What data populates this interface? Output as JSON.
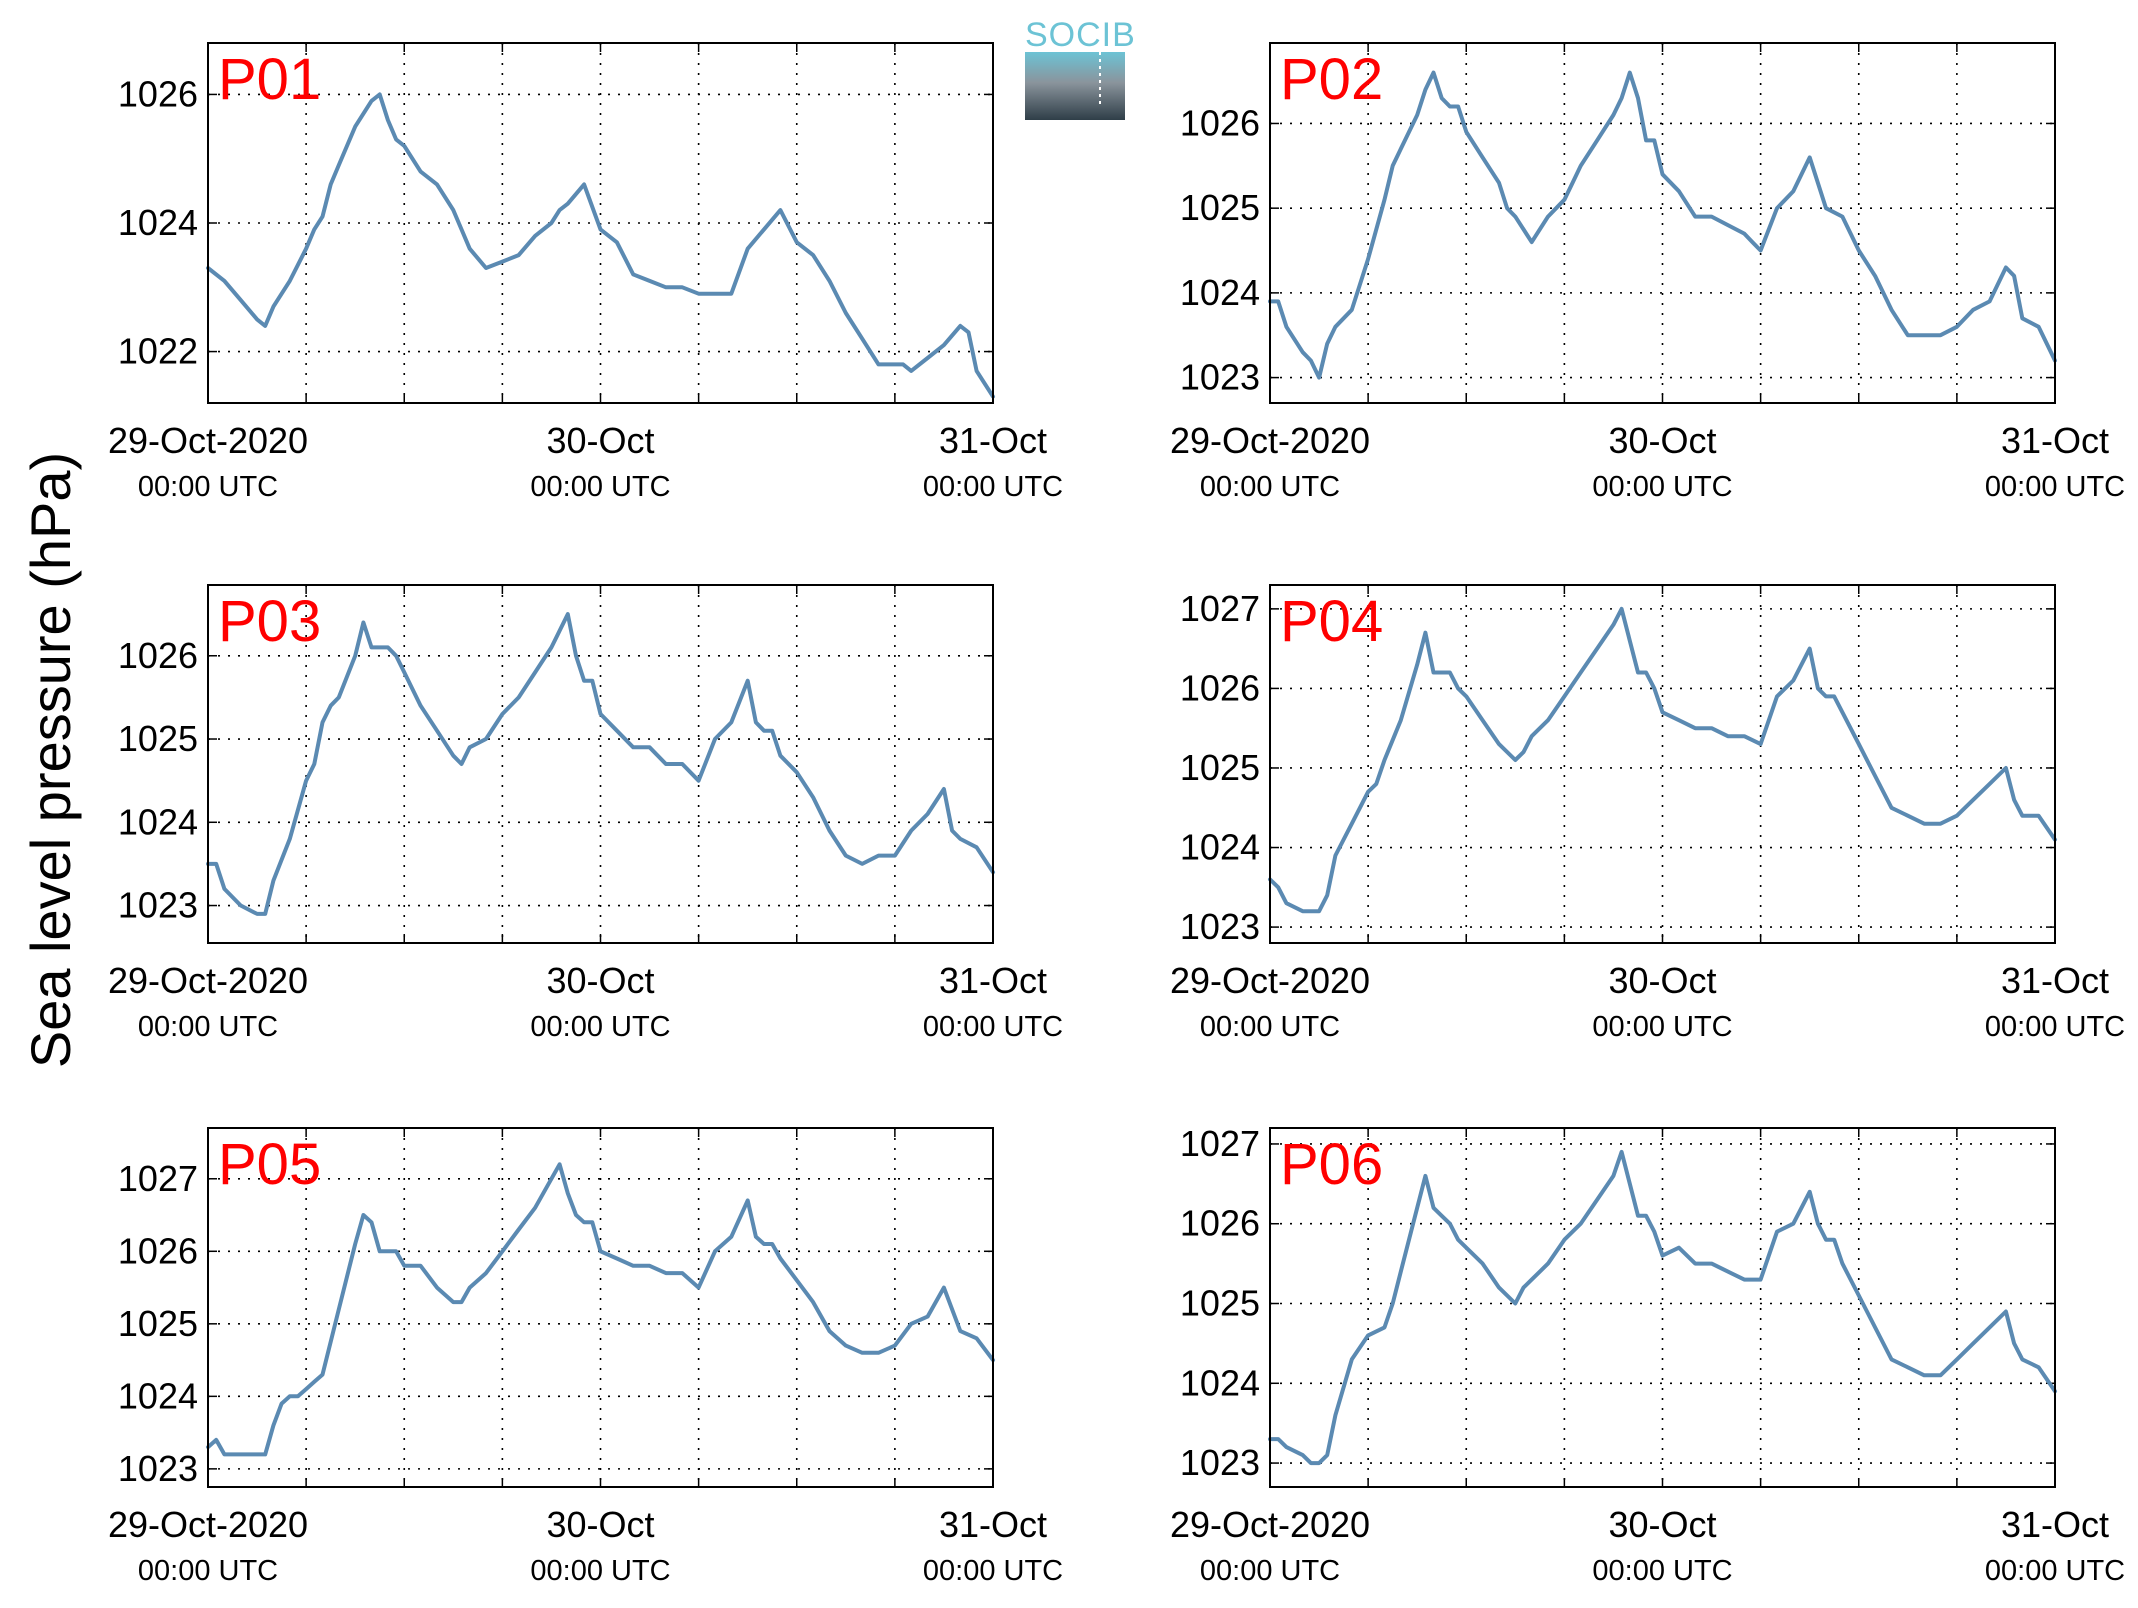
{
  "figure": {
    "ylabel": "Sea level pressure (hPa)",
    "logo_text": "SOCIB",
    "colors": {
      "line": "#5b8ab2",
      "panel_label": "#ff0000",
      "logo_top": "#6cc3d5",
      "logo_bottom": "#2f3e48"
    }
  },
  "chart_data": [
    {
      "type": "line",
      "title": "P01",
      "x_unit": "hours since 29-Oct-2020 00:00 UTC",
      "xlim": [
        0,
        48
      ],
      "ylim": [
        1021.2,
        1026.8
      ],
      "yticks": [
        1022,
        1024,
        1026
      ],
      "xticks": [
        0,
        24,
        48
      ],
      "xtick_labels": [
        [
          "29-Oct-2020",
          "00:00 UTC"
        ],
        [
          "30-Oct",
          "00:00 UTC"
        ],
        [
          "31-Oct",
          "00:00 UTC"
        ]
      ],
      "minor_grid_x": [
        6,
        12,
        18,
        30,
        36,
        42
      ],
      "grid": "dotted",
      "series": [
        {
          "x": [
            0,
            1,
            2,
            3,
            3.5,
            4,
            5,
            6,
            6.5,
            7,
            7.5,
            8,
            9,
            10,
            10.5,
            11,
            11.5,
            12,
            13,
            14,
            15,
            15.5,
            16,
            17,
            18,
            19,
            20,
            21,
            21.5,
            22,
            23,
            24,
            25,
            26,
            27,
            28,
            29,
            30,
            31,
            31.5,
            32,
            33,
            34,
            35,
            36,
            37,
            38,
            39,
            40,
            41,
            41.5,
            42,
            42.5,
            43,
            44,
            45,
            46,
            46.5,
            47,
            48
          ],
          "values": [
            1023.3,
            1023.1,
            1022.8,
            1022.5,
            1022.4,
            1022.7,
            1023.1,
            1023.6,
            1023.9,
            1024.1,
            1024.6,
            1024.9,
            1025.5,
            1025.9,
            1026.0,
            1025.6,
            1025.3,
            1025.2,
            1024.8,
            1024.6,
            1024.2,
            1023.9,
            1023.6,
            1023.3,
            1023.4,
            1023.5,
            1023.8,
            1024.0,
            1024.2,
            1024.3,
            1024.6,
            1023.9,
            1023.7,
            1023.2,
            1023.1,
            1023.0,
            1023.0,
            1022.9,
            1022.9,
            1022.9,
            1022.9,
            1023.6,
            1023.9,
            1024.2,
            1023.7,
            1023.5,
            1023.1,
            1022.6,
            1022.2,
            1021.8,
            1021.8,
            1021.8,
            1021.8,
            1021.7,
            1021.9,
            1022.1,
            1022.4,
            1022.3,
            1021.7,
            1021.3
          ]
        }
      ]
    },
    {
      "type": "line",
      "title": "P02",
      "x_unit": "hours since 29-Oct-2020 00:00 UTC",
      "xlim": [
        0,
        48
      ],
      "ylim": [
        1022.7,
        1026.95
      ],
      "yticks": [
        1023,
        1024,
        1025,
        1026
      ],
      "xticks": [
        0,
        24,
        48
      ],
      "xtick_labels": [
        [
          "29-Oct-2020",
          "00:00 UTC"
        ],
        [
          "30-Oct",
          "00:00 UTC"
        ],
        [
          "31-Oct",
          "00:00 UTC"
        ]
      ],
      "minor_grid_x": [
        6,
        12,
        18,
        30,
        36,
        42
      ],
      "grid": "dotted",
      "series": [
        {
          "x": [
            0,
            0.5,
            1,
            2,
            2.5,
            3,
            3.5,
            4,
            5,
            6,
            7,
            7.5,
            8,
            9,
            9.5,
            10,
            10.5,
            11,
            11.5,
            12,
            13,
            14,
            14.5,
            15,
            16,
            17,
            18,
            18.5,
            19,
            20,
            21,
            21.5,
            22,
            22.5,
            23,
            23.5,
            24,
            25,
            26,
            27,
            28,
            29,
            29.5,
            30,
            31,
            32,
            33,
            34,
            35,
            36,
            37,
            38,
            39,
            40,
            41,
            42,
            43,
            44,
            45,
            45.5,
            46,
            47,
            48
          ],
          "values": [
            1023.9,
            1023.9,
            1023.6,
            1023.3,
            1023.2,
            1023.0,
            1023.4,
            1023.6,
            1023.8,
            1024.4,
            1025.1,
            1025.5,
            1025.7,
            1026.1,
            1026.4,
            1026.6,
            1026.3,
            1026.2,
            1026.2,
            1025.9,
            1025.6,
            1025.3,
            1025.0,
            1024.9,
            1024.6,
            1024.9,
            1025.1,
            1025.3,
            1025.5,
            1025.8,
            1026.1,
            1026.3,
            1026.6,
            1026.3,
            1025.8,
            1025.8,
            1025.4,
            1025.2,
            1024.9,
            1024.9,
            1024.8,
            1024.7,
            1024.6,
            1024.5,
            1025.0,
            1025.2,
            1025.6,
            1025.0,
            1024.9,
            1024.5,
            1024.2,
            1023.8,
            1023.5,
            1023.5,
            1023.5,
            1023.6,
            1023.8,
            1023.9,
            1024.3,
            1024.2,
            1023.7,
            1023.6,
            1023.2
          ]
        }
      ]
    },
    {
      "type": "line",
      "title": "P03",
      "x_unit": "hours since 29-Oct-2020 00:00 UTC",
      "xlim": [
        0,
        48
      ],
      "ylim": [
        1022.55,
        1026.85
      ],
      "yticks": [
        1023,
        1024,
        1025,
        1026
      ],
      "xticks": [
        0,
        24,
        48
      ],
      "xtick_labels": [
        [
          "29-Oct-2020",
          "00:00 UTC"
        ],
        [
          "30-Oct",
          "00:00 UTC"
        ],
        [
          "31-Oct",
          "00:00 UTC"
        ]
      ],
      "minor_grid_x": [
        6,
        12,
        18,
        30,
        36,
        42
      ],
      "grid": "dotted",
      "series": [
        {
          "x": [
            0,
            0.5,
            1,
            2,
            3,
            3.5,
            4,
            5,
            6,
            6.5,
            7,
            7.5,
            8,
            9,
            9.5,
            10,
            10.5,
            11,
            11.5,
            12,
            13,
            14,
            15,
            15.5,
            16,
            17,
            18,
            19,
            20,
            21,
            21.5,
            22,
            22.5,
            23,
            23.5,
            24,
            25,
            26,
            27,
            28,
            29,
            30,
            31,
            32,
            33,
            33.5,
            34,
            34.5,
            35,
            36,
            37,
            38,
            39,
            40,
            41,
            42,
            43,
            44,
            45,
            45.5,
            46,
            47,
            48
          ],
          "values": [
            1023.5,
            1023.5,
            1023.2,
            1023.0,
            1022.9,
            1022.9,
            1023.3,
            1023.8,
            1024.5,
            1024.7,
            1025.2,
            1025.4,
            1025.5,
            1026.0,
            1026.4,
            1026.1,
            1026.1,
            1026.1,
            1026.0,
            1025.8,
            1025.4,
            1025.1,
            1024.8,
            1024.7,
            1024.9,
            1025.0,
            1025.3,
            1025.5,
            1025.8,
            1026.1,
            1026.3,
            1026.5,
            1026.0,
            1025.7,
            1025.7,
            1025.3,
            1025.1,
            1024.9,
            1024.9,
            1024.7,
            1024.7,
            1024.5,
            1025.0,
            1025.2,
            1025.7,
            1025.2,
            1025.1,
            1025.1,
            1024.8,
            1024.6,
            1024.3,
            1023.9,
            1023.6,
            1023.5,
            1023.6,
            1023.6,
            1023.9,
            1024.1,
            1024.4,
            1023.9,
            1023.8,
            1023.7,
            1023.4
          ]
        }
      ]
    },
    {
      "type": "line",
      "title": "P04",
      "x_unit": "hours since 29-Oct-2020 00:00 UTC",
      "xlim": [
        0,
        48
      ],
      "ylim": [
        1022.8,
        1027.3
      ],
      "yticks": [
        1023,
        1024,
        1025,
        1026,
        1027
      ],
      "xticks": [
        0,
        24,
        48
      ],
      "xtick_labels": [
        [
          "29-Oct-2020",
          "00:00 UTC"
        ],
        [
          "30-Oct",
          "00:00 UTC"
        ],
        [
          "31-Oct",
          "00:00 UTC"
        ]
      ],
      "minor_grid_x": [
        6,
        12,
        18,
        30,
        36,
        42
      ],
      "grid": "dotted",
      "series": [
        {
          "x": [
            0,
            0.5,
            1,
            2,
            3,
            3.5,
            4,
            5,
            6,
            6.5,
            7,
            8,
            9,
            9.5,
            10,
            10.5,
            11,
            11.5,
            12,
            13,
            14,
            15,
            15.5,
            16,
            17,
            18,
            19,
            20,
            21,
            21.5,
            22,
            22.5,
            23,
            23.5,
            24,
            25,
            26,
            27,
            28,
            29,
            30,
            31,
            32,
            33,
            33.5,
            34,
            34.5,
            35,
            36,
            37,
            38,
            39,
            40,
            41,
            42,
            43,
            44,
            45,
            45.5,
            46,
            47,
            48
          ],
          "values": [
            1023.6,
            1023.5,
            1023.3,
            1023.2,
            1023.2,
            1023.4,
            1023.9,
            1024.3,
            1024.7,
            1024.8,
            1025.1,
            1025.6,
            1026.3,
            1026.7,
            1026.2,
            1026.2,
            1026.2,
            1026.0,
            1025.9,
            1025.6,
            1025.3,
            1025.1,
            1025.2,
            1025.4,
            1025.6,
            1025.9,
            1026.2,
            1026.5,
            1026.8,
            1027.0,
            1026.6,
            1026.2,
            1026.2,
            1026.0,
            1025.7,
            1025.6,
            1025.5,
            1025.5,
            1025.4,
            1025.4,
            1025.3,
            1025.9,
            1026.1,
            1026.5,
            1026.0,
            1025.9,
            1025.9,
            1025.7,
            1025.3,
            1024.9,
            1024.5,
            1024.4,
            1024.3,
            1024.3,
            1024.4,
            1024.6,
            1024.8,
            1025.0,
            1024.6,
            1024.4,
            1024.4,
            1024.1
          ]
        }
      ]
    },
    {
      "type": "line",
      "title": "P05",
      "x_unit": "hours since 29-Oct-2020 00:00 UTC",
      "xlim": [
        0,
        48
      ],
      "ylim": [
        1022.75,
        1027.7
      ],
      "yticks": [
        1023,
        1024,
        1025,
        1026,
        1027
      ],
      "xticks": [
        0,
        24,
        48
      ],
      "xtick_labels": [
        [
          "29-Oct-2020",
          "00:00 UTC"
        ],
        [
          "30-Oct",
          "00:00 UTC"
        ],
        [
          "31-Oct",
          "00:00 UTC"
        ]
      ],
      "minor_grid_x": [
        6,
        12,
        18,
        30,
        36,
        42
      ],
      "grid": "dotted",
      "series": [
        {
          "x": [
            0,
            0.5,
            1,
            1.5,
            2,
            3,
            3.5,
            4,
            4.5,
            5,
            5.5,
            6,
            6.5,
            7,
            8,
            9,
            9.5,
            10,
            10.5,
            11,
            11.5,
            12,
            13,
            14,
            15,
            15.5,
            16,
            17,
            18,
            19,
            20,
            21,
            21.5,
            22,
            22.5,
            23,
            23.5,
            24,
            25,
            26,
            27,
            28,
            29,
            30,
            31,
            32,
            33,
            33.5,
            34,
            34.5,
            35,
            36,
            37,
            38,
            39,
            40,
            41,
            42,
            43,
            44,
            45,
            45.5,
            46,
            47,
            48
          ],
          "values": [
            1023.3,
            1023.4,
            1023.2,
            1023.2,
            1023.2,
            1023.2,
            1023.2,
            1023.6,
            1023.9,
            1024.0,
            1024.0,
            1024.1,
            1024.2,
            1024.3,
            1025.2,
            1026.1,
            1026.5,
            1026.4,
            1026.0,
            1026.0,
            1026.0,
            1025.8,
            1025.8,
            1025.5,
            1025.3,
            1025.3,
            1025.5,
            1025.7,
            1026.0,
            1026.3,
            1026.6,
            1027.0,
            1027.2,
            1026.8,
            1026.5,
            1026.4,
            1026.4,
            1026.0,
            1025.9,
            1025.8,
            1025.8,
            1025.7,
            1025.7,
            1025.5,
            1026.0,
            1026.2,
            1026.7,
            1026.2,
            1026.1,
            1026.1,
            1025.9,
            1025.6,
            1025.3,
            1024.9,
            1024.7,
            1024.6,
            1024.6,
            1024.7,
            1025.0,
            1025.1,
            1025.5,
            1025.2,
            1024.9,
            1024.8,
            1024.5
          ]
        }
      ]
    },
    {
      "type": "line",
      "title": "P06",
      "x_unit": "hours since 29-Oct-2020 00:00 UTC",
      "xlim": [
        0,
        48
      ],
      "ylim": [
        1022.7,
        1027.2
      ],
      "yticks": [
        1023,
        1024,
        1025,
        1026,
        1027
      ],
      "xticks": [
        0,
        24,
        48
      ],
      "xtick_labels": [
        [
          "29-Oct-2020",
          "00:00 UTC"
        ],
        [
          "30-Oct",
          "00:00 UTC"
        ],
        [
          "31-Oct",
          "00:00 UTC"
        ]
      ],
      "minor_grid_x": [
        6,
        12,
        18,
        30,
        36,
        42
      ],
      "grid": "dotted",
      "series": [
        {
          "x": [
            0,
            0.5,
            1,
            2,
            2.5,
            3,
            3.5,
            4,
            5,
            6,
            7,
            7.5,
            8,
            9,
            9.5,
            10,
            10.5,
            11,
            11.5,
            12,
            13,
            14,
            15,
            15.5,
            16,
            17,
            18,
            19,
            20,
            21,
            21.5,
            22,
            22.5,
            23,
            23.5,
            24,
            25,
            26,
            27,
            28,
            29,
            30,
            31,
            32,
            33,
            33.5,
            34,
            34.5,
            35,
            36,
            37,
            38,
            39,
            40,
            41,
            42,
            43,
            44,
            45,
            45.5,
            46,
            47,
            48
          ],
          "values": [
            1023.3,
            1023.3,
            1023.2,
            1023.1,
            1023.0,
            1023.0,
            1023.1,
            1023.6,
            1024.3,
            1024.6,
            1024.7,
            1025.0,
            1025.4,
            1026.2,
            1026.6,
            1026.2,
            1026.1,
            1026.0,
            1025.8,
            1025.7,
            1025.5,
            1025.2,
            1025.0,
            1025.2,
            1025.3,
            1025.5,
            1025.8,
            1026.0,
            1026.3,
            1026.6,
            1026.9,
            1026.5,
            1026.1,
            1026.1,
            1025.9,
            1025.6,
            1025.7,
            1025.5,
            1025.5,
            1025.4,
            1025.3,
            1025.3,
            1025.9,
            1026.0,
            1026.4,
            1026.0,
            1025.8,
            1025.8,
            1025.5,
            1025.1,
            1024.7,
            1024.3,
            1024.2,
            1024.1,
            1024.1,
            1024.3,
            1024.5,
            1024.7,
            1024.9,
            1024.5,
            1024.3,
            1024.2,
            1023.9
          ]
        }
      ]
    }
  ]
}
